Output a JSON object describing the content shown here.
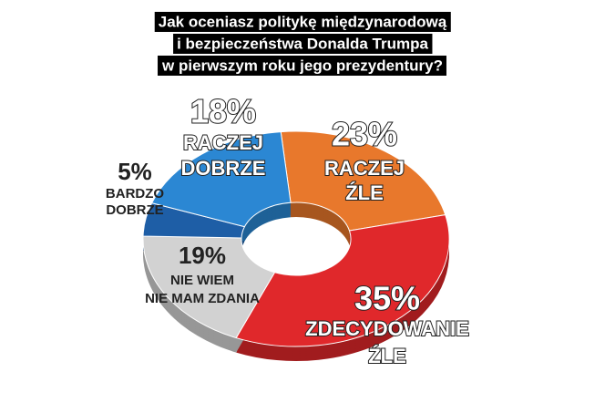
{
  "chart_data": {
    "type": "pie",
    "title": [
      "Jak oceniasz politykę międzynarodową",
      "i bezpieczeństwa Donalda Trumpa",
      "w pierwszym roku jego prezydentury?"
    ],
    "categories": [
      [
        "RACZEJ",
        "ŹLE"
      ],
      [
        "ZDECYDOWANIE",
        "ŹLE"
      ],
      [
        "NIE WIEM",
        "NIE MAM ZDANIA"
      ],
      [
        "BARDZO",
        "DOBRZE"
      ],
      [
        "RACZEJ",
        "DOBRZE"
      ]
    ],
    "values": [
      23,
      35,
      19,
      5,
      18
    ],
    "value_labels": [
      "23%",
      "35%",
      "19%",
      "5%",
      "18%"
    ],
    "colors": [
      "#e8782c",
      "#e0282b",
      "#d2d2d2",
      "#1e5ea6",
      "#2b87d3"
    ]
  }
}
